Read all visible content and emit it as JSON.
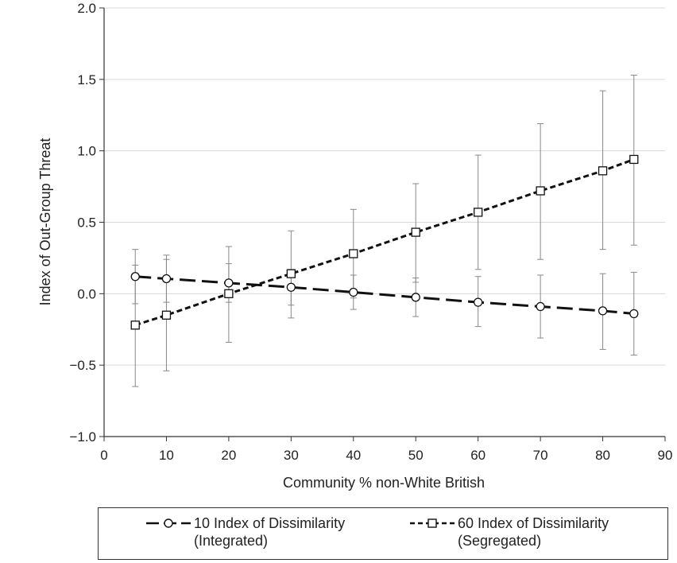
{
  "chart_data": {
    "type": "line",
    "xlabel": "Community % non-White British",
    "ylabel": "Index of Out-Group Threat",
    "xlim": [
      0,
      90
    ],
    "ylim": [
      -1.0,
      2.0
    ],
    "x_ticks": [
      "0",
      "10",
      "20",
      "30",
      "40",
      "50",
      "60",
      "70",
      "80",
      "90"
    ],
    "y_ticks": [
      "2.0",
      "1.5",
      "1.0",
      "0.5",
      "0.0",
      "−0.5",
      "−1.0"
    ],
    "grid": "horizontal",
    "x": [
      5,
      10,
      20,
      30,
      40,
      50,
      60,
      70,
      80,
      85
    ],
    "series": [
      {
        "name": "10 Index of Dissimilarity (Integrated)",
        "label_line1": "10 Index of Dissimilarity",
        "label_line2": "(Integrated)",
        "marker": "circle",
        "dash": "long-dash",
        "values": [
          0.12,
          0.105,
          0.075,
          0.045,
          0.01,
          -0.025,
          -0.06,
          -0.09,
          -0.12,
          -0.14
        ],
        "err_low": [
          -0.07,
          -0.06,
          -0.06,
          -0.08,
          -0.11,
          -0.16,
          -0.23,
          -0.31,
          -0.39,
          -0.43
        ],
        "err_high": [
          0.31,
          0.27,
          0.21,
          0.17,
          0.13,
          0.11,
          0.12,
          0.13,
          0.14,
          0.15
        ]
      },
      {
        "name": "60 Index of Dissimilarity (Segregated)",
        "label_line1": "60 Index of Dissimilarity",
        "label_line2": "(Segregated)",
        "marker": "square",
        "dash": "short-dash",
        "values": [
          -0.22,
          -0.15,
          0.0,
          0.14,
          0.28,
          0.43,
          0.57,
          0.72,
          0.86,
          0.94
        ],
        "err_low": [
          -0.65,
          -0.54,
          -0.34,
          -0.17,
          -0.03,
          0.08,
          0.17,
          0.24,
          0.31,
          0.34
        ],
        "err_high": [
          0.2,
          0.24,
          0.33,
          0.44,
          0.59,
          0.77,
          0.97,
          1.19,
          1.42,
          1.53
        ]
      }
    ],
    "legend_position": "bottom"
  }
}
